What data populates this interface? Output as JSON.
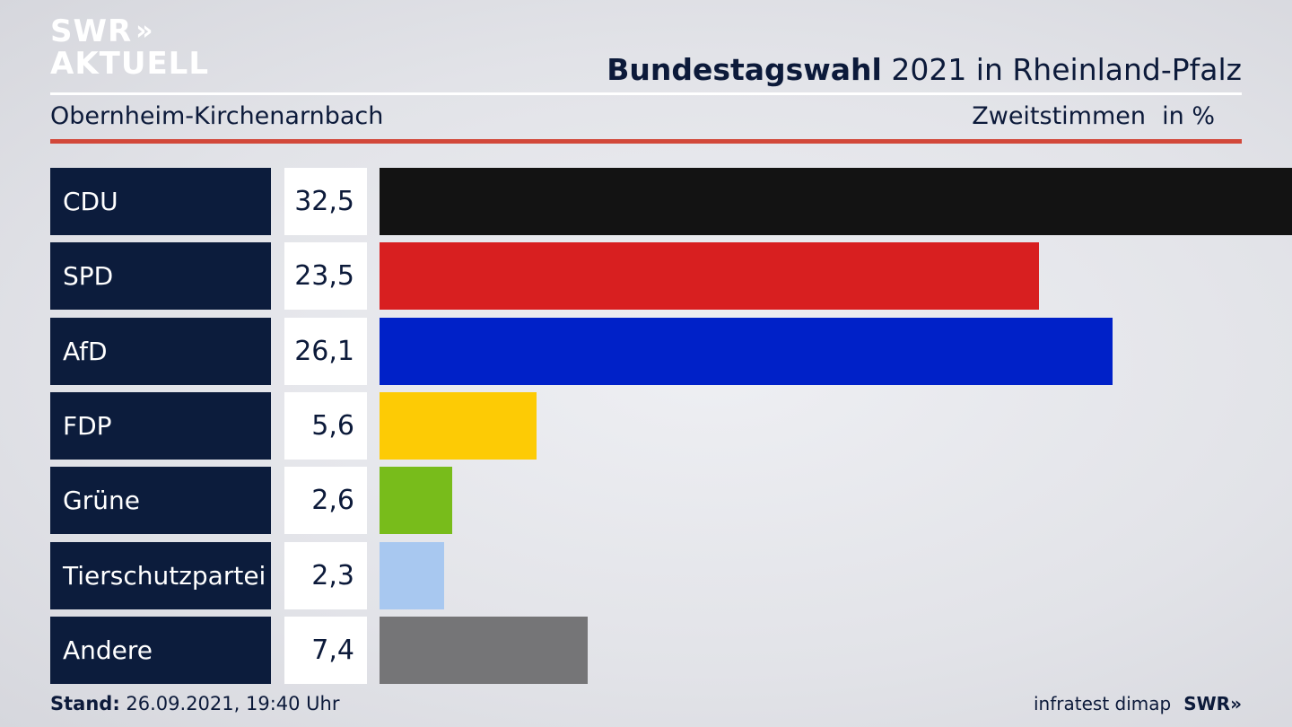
{
  "logo": {
    "line1": "SWR",
    "line2": "AKTUELL",
    "chevrons": "»"
  },
  "header": {
    "title_bold": "Bundestagswahl",
    "title_rest": " 2021 in Rheinland-Pfalz",
    "subtitle": "Obernheim-Kirchenarnbach",
    "metric": "Zweitstimmen",
    "unit": "in %"
  },
  "chart_data": {
    "type": "bar",
    "orientation": "horizontal",
    "categories": [
      "CDU",
      "SPD",
      "AfD",
      "FDP",
      "Grüne",
      "Tierschutzpartei",
      "Andere"
    ],
    "values": [
      32.5,
      23.5,
      26.1,
      5.6,
      2.6,
      2.3,
      7.4
    ],
    "value_labels": [
      "32,5",
      "23,5",
      "26,1",
      "5,6",
      "2,6",
      "2,3",
      "7,4"
    ],
    "colors": [
      "#131313",
      "#d81f20",
      "#0021c8",
      "#fdcb05",
      "#78bc1b",
      "#a8c8f0",
      "#757577"
    ],
    "title": "Bundestagswahl 2021 in Rheinland-Pfalz",
    "subtitle": "Obernheim-Kirchenarnbach",
    "ylabel": "",
    "xlabel": "",
    "grid": false
  },
  "footer": {
    "stand_label": "Stand:",
    "stand_value": " 26.09.2021, 19:40 Uhr",
    "source": "infratest dimap",
    "brand": "SWR»"
  }
}
